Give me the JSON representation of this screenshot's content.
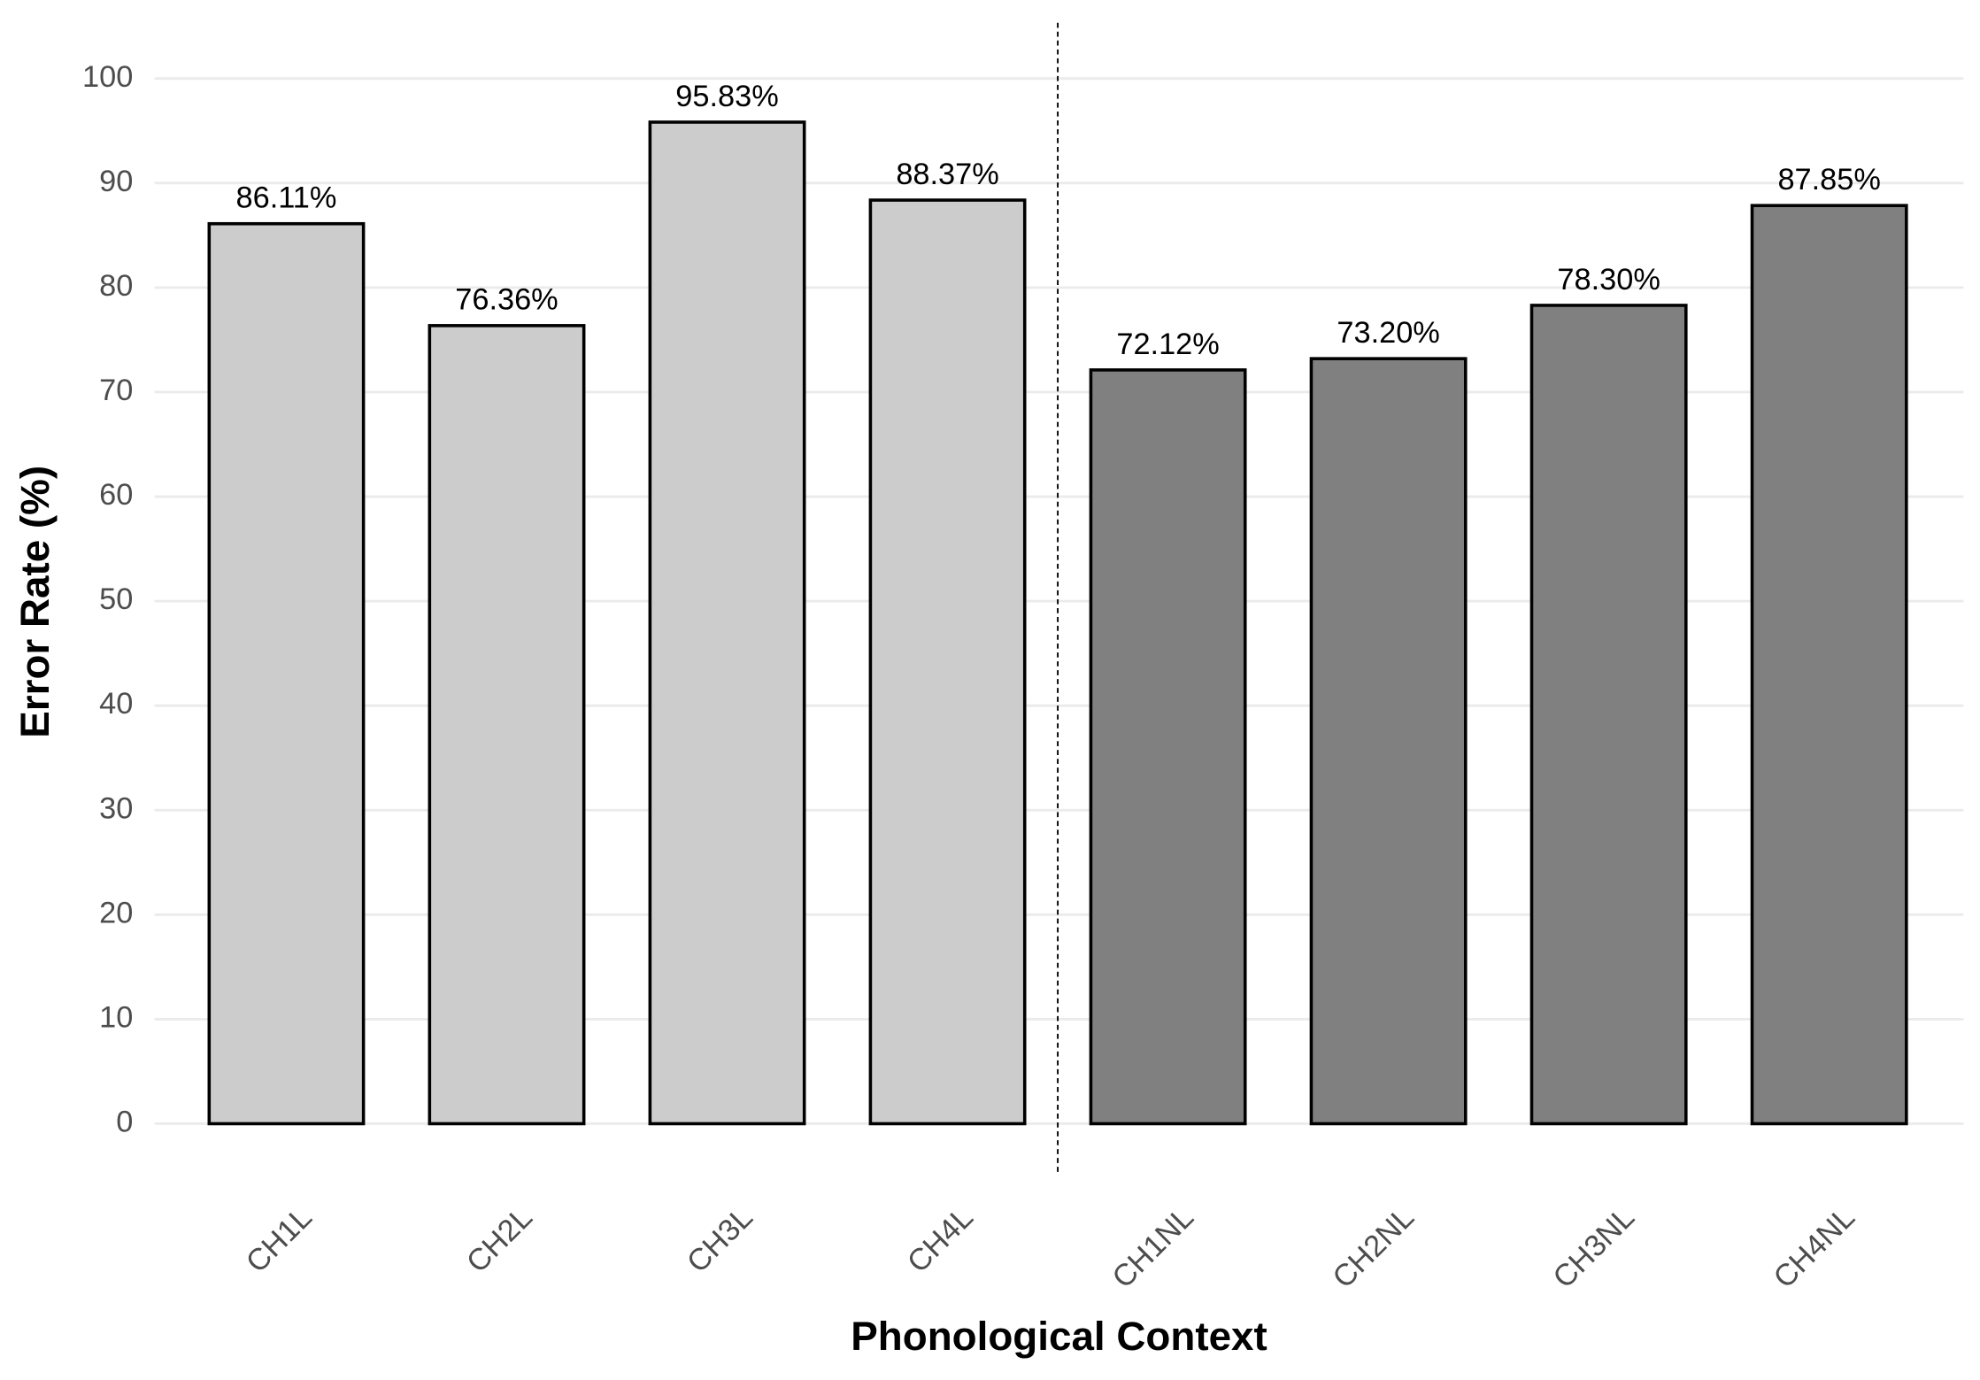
{
  "chart_data": {
    "type": "bar",
    "x_label": "Phonological Context",
    "y_label": "Error Rate (%)",
    "categories": [
      "CH1L",
      "CH2L",
      "CH3L",
      "CH4L",
      "CH1NL",
      "CH2NL",
      "CH3NL",
      "CH4NL"
    ],
    "values": [
      86.11,
      76.36,
      95.83,
      88.37,
      72.12,
      73.2,
      78.3,
      87.85
    ],
    "value_labels": [
      "86.11%",
      "76.36%",
      "95.83%",
      "88.37%",
      "72.12%",
      "73.20%",
      "78.30%",
      "87.85%"
    ],
    "colors": [
      "#cccccc",
      "#cccccc",
      "#cccccc",
      "#cccccc",
      "#808080",
      "#808080",
      "#808080",
      "#808080"
    ],
    "ylim": [
      0,
      100
    ],
    "yticks": [
      0,
      10,
      20,
      30,
      40,
      50,
      60,
      70,
      80,
      90,
      100
    ],
    "grid": true
  }
}
